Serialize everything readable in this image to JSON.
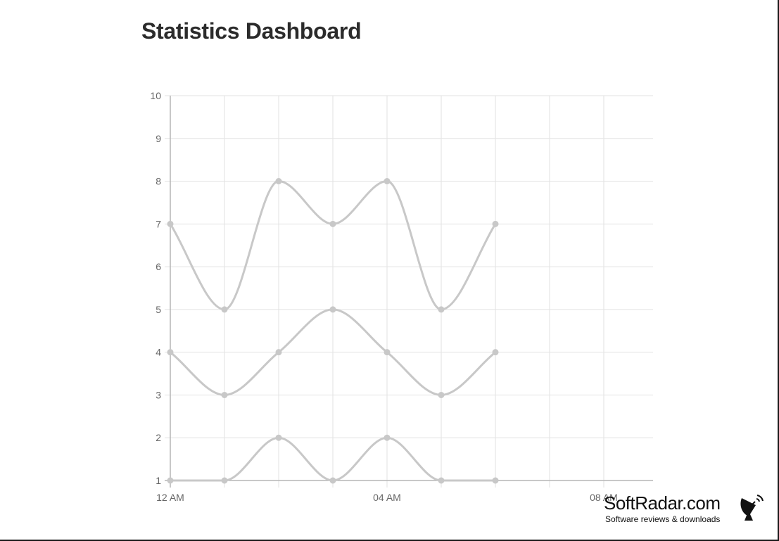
{
  "header": {
    "title": "Statistics Dashboard"
  },
  "chart_data": {
    "type": "line",
    "title": "",
    "xlabel": "",
    "ylabel": "",
    "smooth": true,
    "grid": true,
    "legend": "none",
    "x_axis_unit": "hour",
    "x": [
      0,
      1,
      2,
      3,
      4,
      5,
      6
    ],
    "x_range": [
      0,
      9
    ],
    "x_ticks": [
      0,
      4,
      8
    ],
    "x_tick_labels": [
      "12 AM",
      "04 AM",
      "08 AM"
    ],
    "ylim": [
      1,
      10
    ],
    "y_ticks": [
      1,
      2,
      3,
      4,
      5,
      6,
      7,
      8,
      9,
      10
    ],
    "series": [
      {
        "values": [
          7,
          5,
          8,
          7,
          8,
          5,
          7
        ]
      },
      {
        "values": [
          4,
          3,
          4,
          5,
          4,
          3,
          4
        ]
      },
      {
        "values": [
          1,
          1,
          2,
          1,
          2,
          1,
          1
        ]
      }
    ],
    "colors": {
      "line": "#c8c8c8",
      "grid": "#e2e2e2",
      "axis": "#b5b5b5",
      "tick_text": "#666666"
    }
  },
  "watermark": {
    "brand": "SoftRadar.com",
    "tagline": "Software reviews & downloads",
    "icon": "satellite-dish-icon"
  }
}
